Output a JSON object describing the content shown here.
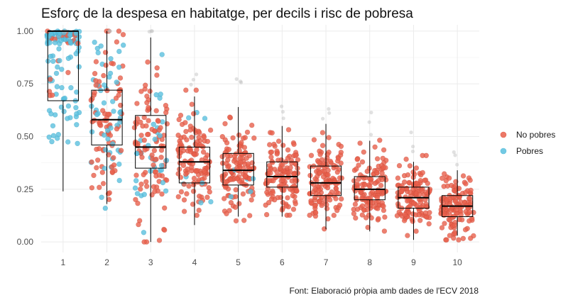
{
  "chart_data": {
    "type": "scatter",
    "subtype": "boxplot-with-jitter",
    "title": "Esforç de la despesa en habitatge, per decils i risc de pobresa",
    "caption": "Font: Elaboració pròpia amb dades de l'ECV 2018",
    "xlabel": "",
    "ylabel": "",
    "categories": [
      "1",
      "2",
      "3",
      "4",
      "5",
      "6",
      "7",
      "8",
      "9",
      "10"
    ],
    "y_ticks": [
      "0.00",
      "0.25",
      "0.50",
      "0.75",
      "1.00"
    ],
    "ylim": [
      -0.05,
      1.03
    ],
    "grid": true,
    "legend_position": "right",
    "series": [
      {
        "name": "No pobres",
        "color": "#E8604C"
      },
      {
        "name": "Pobres",
        "color": "#5BC0DE"
      }
    ],
    "boxes": [
      {
        "category": "1",
        "min": 0.24,
        "q1": 0.67,
        "median": 1.0,
        "q3": 1.0,
        "max": 1.0
      },
      {
        "category": "2",
        "min": 0.18,
        "q1": 0.46,
        "median": 0.58,
        "q3": 0.72,
        "max": 1.0
      },
      {
        "category": "3",
        "min": 0.0,
        "q1": 0.35,
        "median": 0.45,
        "q3": 0.6,
        "max": 0.97
      },
      {
        "category": "4",
        "min": 0.08,
        "q1": 0.28,
        "median": 0.38,
        "q3": 0.45,
        "max": 0.69
      },
      {
        "category": "5",
        "min": 0.12,
        "q1": 0.27,
        "median": 0.34,
        "q3": 0.42,
        "max": 0.64
      },
      {
        "category": "6",
        "min": 0.12,
        "q1": 0.26,
        "median": 0.31,
        "q3": 0.38,
        "max": 0.55
      },
      {
        "category": "7",
        "min": 0.06,
        "q1": 0.22,
        "median": 0.28,
        "q3": 0.36,
        "max": 0.56
      },
      {
        "category": "8",
        "min": 0.05,
        "q1": 0.2,
        "median": 0.25,
        "q3": 0.31,
        "max": 0.48
      },
      {
        "category": "9",
        "min": 0.01,
        "q1": 0.16,
        "median": 0.21,
        "q3": 0.26,
        "max": 0.38
      },
      {
        "category": "10",
        "min": 0.03,
        "q1": 0.12,
        "median": 0.17,
        "q3": 0.22,
        "max": 0.34
      }
    ],
    "point_share_pobres": [
      0.85,
      0.35,
      0.25,
      0.07,
      0.02,
      0.0,
      0.0,
      0.0,
      0.0,
      0.0
    ],
    "points_per_category_approx": 130
  }
}
